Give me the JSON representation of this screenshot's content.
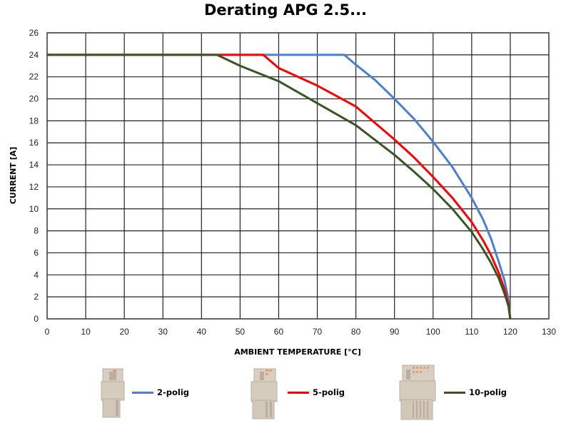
{
  "chart_data": {
    "type": "line",
    "title": "Derating APG 2.5...",
    "xlabel": "AMBIENT TEMPERATURE [°C]",
    "ylabel": "CURRENT [A]",
    "xlim": [
      0,
      130
    ],
    "ylim": [
      0,
      26
    ],
    "xticks": [
      0,
      10,
      20,
      30,
      40,
      50,
      60,
      70,
      80,
      90,
      100,
      110,
      120,
      130
    ],
    "yticks": [
      0,
      2,
      4,
      6,
      8,
      10,
      12,
      14,
      16,
      18,
      20,
      22,
      24,
      26
    ],
    "grid": true,
    "legend_position": "bottom",
    "series": [
      {
        "name": "2-polig",
        "color": "#4a7fd4",
        "points": [
          [
            0,
            24
          ],
          [
            77,
            24
          ],
          [
            80,
            23.1
          ],
          [
            85,
            21.7
          ],
          [
            90,
            20
          ],
          [
            95,
            18.2
          ],
          [
            100,
            16.1
          ],
          [
            105,
            13.8
          ],
          [
            110,
            11
          ],
          [
            113,
            9
          ],
          [
            115,
            7.3
          ],
          [
            117,
            5.2
          ],
          [
            118.5,
            3.5
          ],
          [
            119.5,
            1.8
          ],
          [
            120,
            0
          ]
        ]
      },
      {
        "name": "5-polig",
        "color": "#ff0000",
        "points": [
          [
            0,
            24
          ],
          [
            56,
            24
          ],
          [
            60,
            22.8
          ],
          [
            70,
            21.2
          ],
          [
            80,
            19.3
          ],
          [
            90,
            16.3
          ],
          [
            95,
            14.7
          ],
          [
            100,
            12.9
          ],
          [
            105,
            11
          ],
          [
            110,
            8.8
          ],
          [
            113,
            7.1
          ],
          [
            115,
            5.8
          ],
          [
            117,
            4.2
          ],
          [
            118.5,
            2.7
          ],
          [
            119.5,
            1.4
          ],
          [
            120,
            0
          ]
        ]
      },
      {
        "name": "10-polig",
        "color": "#375623",
        "points": [
          [
            0,
            24
          ],
          [
            44,
            24
          ],
          [
            50,
            23
          ],
          [
            60,
            21.6
          ],
          [
            70,
            19.6
          ],
          [
            80,
            17.6
          ],
          [
            90,
            14.9
          ],
          [
            95,
            13.4
          ],
          [
            100,
            11.8
          ],
          [
            105,
            10
          ],
          [
            110,
            7.9
          ],
          [
            113,
            6.3
          ],
          [
            115,
            5.1
          ],
          [
            117,
            3.7
          ],
          [
            118.5,
            2.3
          ],
          [
            119.5,
            1.2
          ],
          [
            120,
            0
          ]
        ]
      }
    ]
  },
  "legend": [
    {
      "label": "2-polig",
      "color": "#4a7fd4",
      "icon": "connector-2-pole-icon"
    },
    {
      "label": "5-polig",
      "color": "#ff0000",
      "icon": "connector-5-pole-icon"
    },
    {
      "label": "10-polig",
      "color": "#375623",
      "icon": "connector-10-pole-icon"
    }
  ]
}
